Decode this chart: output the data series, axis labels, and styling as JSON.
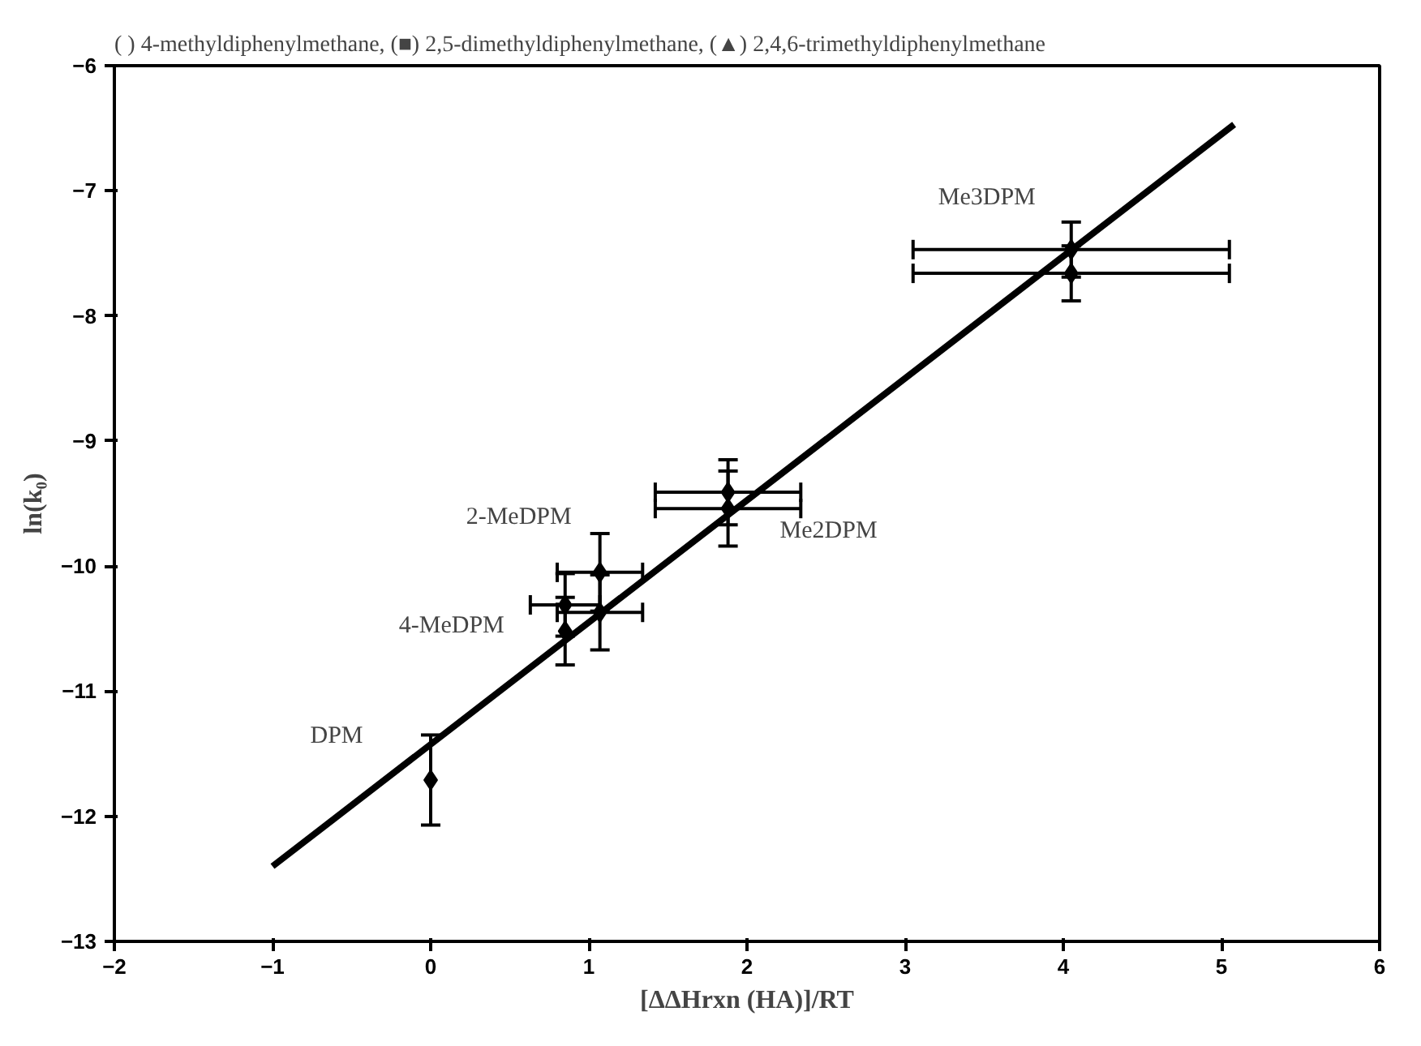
{
  "chart_data": {
    "type": "scatter",
    "xlabel": "[ΔΔHrxn (HA)]/RT",
    "ylabel": "ln(k₀)",
    "xlim": [
      -2,
      6
    ],
    "xticks": [
      -2,
      -1,
      0,
      1,
      2,
      3,
      4,
      5,
      6
    ],
    "ylim": [
      -13,
      -6
    ],
    "yticks": [
      -13,
      -12,
      -11,
      -10,
      -9,
      -8,
      -7,
      -6
    ],
    "grid": false,
    "series": [
      {
        "name": "DPM",
        "marker": "diamond",
        "color": "#000000",
        "x": [
          0
        ],
        "values": [
          -11.71
        ],
        "errors": [
          0.36
        ]
      },
      {
        "name": "4-MeDPM",
        "marker": "diamond",
        "color": "#000000",
        "x": [
          0.85,
          0.85
        ],
        "values": [
          -10.31,
          -10.52
        ],
        "errors": [
          0.25,
          0.27
        ],
        "xerrors": [
          0.22,
          null
        ]
      },
      {
        "name": "2-MeDPM",
        "marker": "diamond",
        "color": "#000000",
        "x": [
          1.07,
          1.07
        ],
        "values": [
          -10.05,
          -10.37
        ],
        "errors": [
          0.31,
          0.3
        ],
        "xerrors": [
          0.27,
          0.27
        ]
      },
      {
        "name": "Me2DPM",
        "marker": "diamond",
        "color": "#000000",
        "x": [
          1.88,
          1.88
        ],
        "values": [
          -9.41,
          -9.54
        ],
        "errors": [
          0.26,
          0.3
        ],
        "xerrors": [
          0.46,
          0.46
        ]
      },
      {
        "name": "Me3DPM",
        "marker": "diamond",
        "color": "#000000",
        "x": [
          4.05,
          4.05
        ],
        "values": [
          -7.47,
          -7.66
        ],
        "errors": [
          0.22,
          0.22
        ],
        "xerrors": [
          1.0,
          1.0
        ]
      },
      {
        "type": "line",
        "color": "#000000",
        "x": [
          -1,
          5.08
        ],
        "values": [
          -12.4,
          -6.47
        ]
      }
    ],
    "annotations": [
      "( ) 4-methyldiphenylmethane, (■) 2,5-dimethyldiphenylmethane, (▲) 2,4,6-trimethyldiphenylmethane"
    ]
  }
}
